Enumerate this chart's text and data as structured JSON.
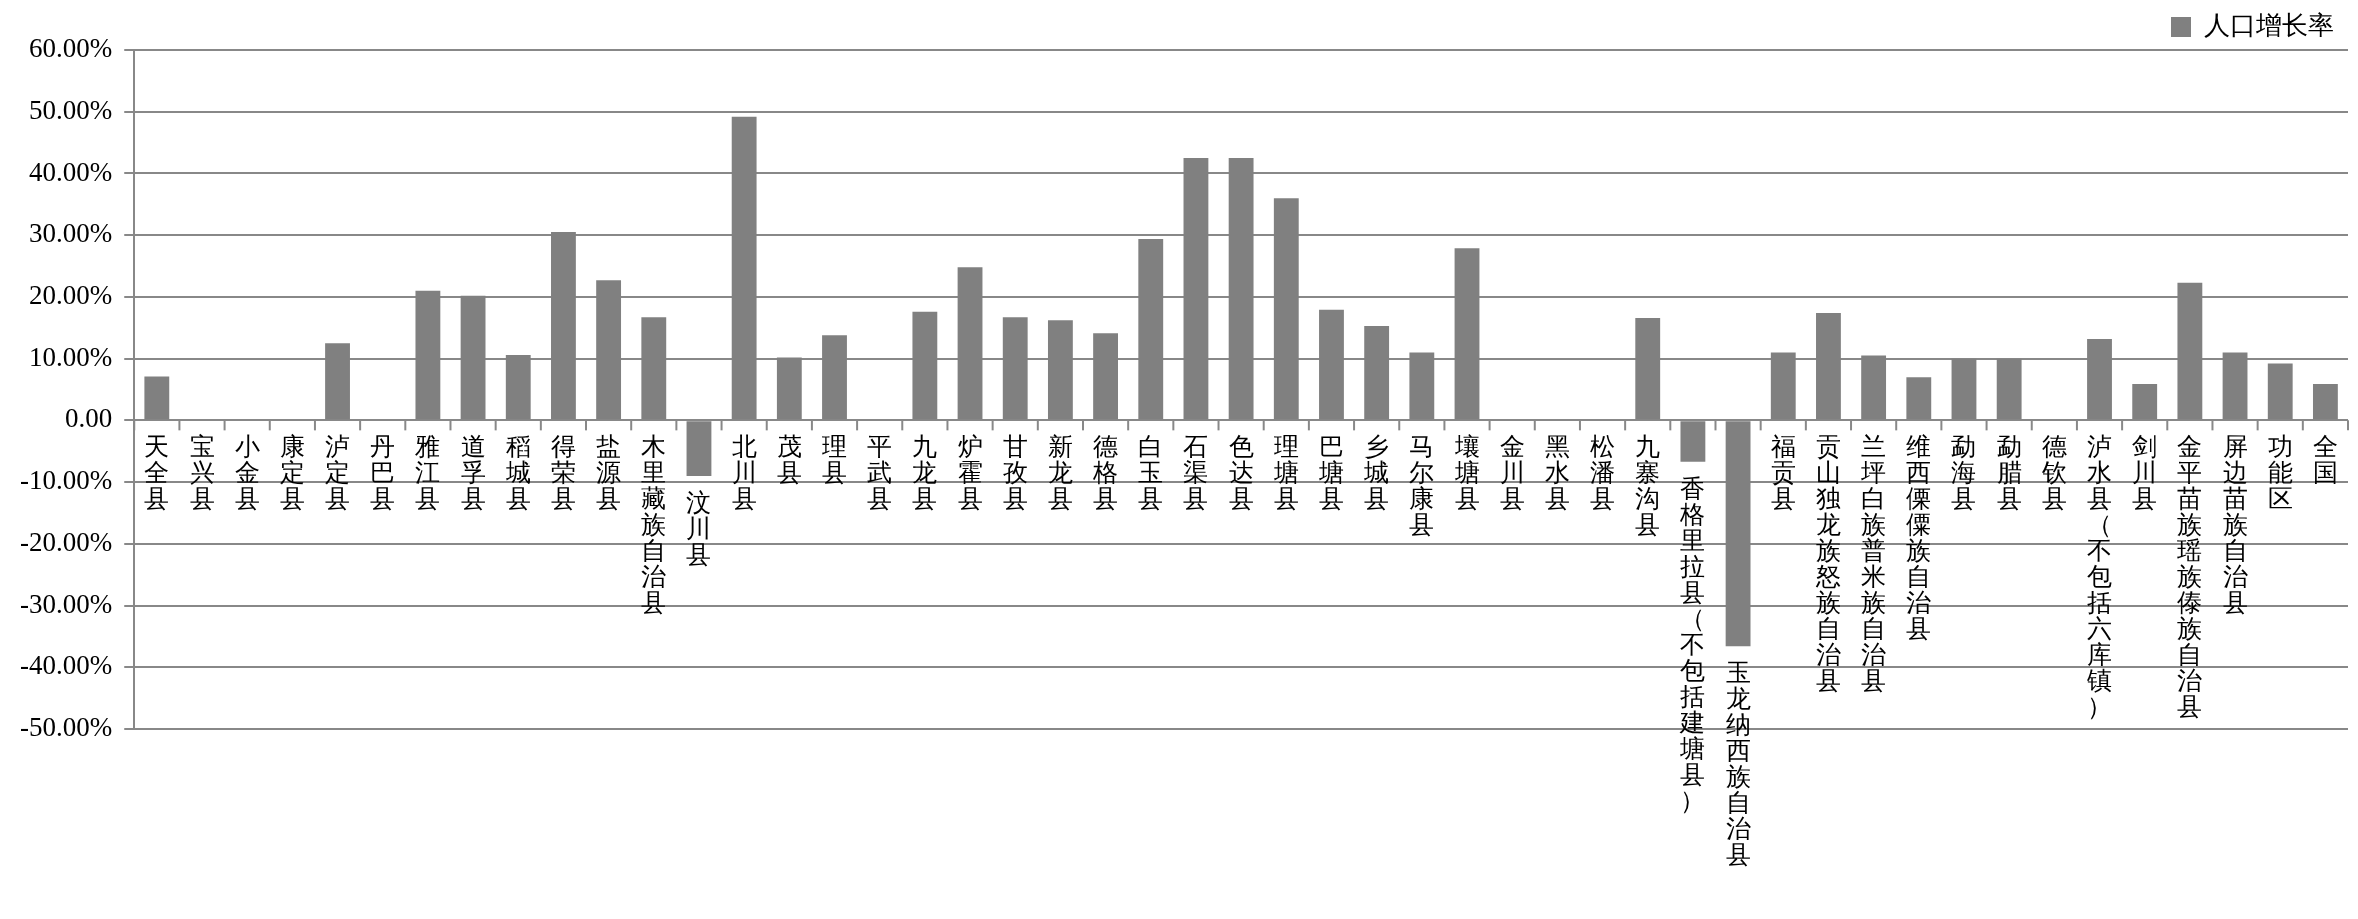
{
  "chart_data": {
    "type": "bar",
    "categories": [
      "天全县",
      "宝兴县",
      "小金县",
      "康定县",
      "泸定县",
      "丹巴县",
      "雅江县",
      "道孚县",
      "稻城县",
      "得荣县",
      "盐源县",
      "木里藏族自治县",
      "汶川县",
      "北川县",
      "茂县",
      "理县",
      "平武县",
      "九龙县",
      "炉霍县",
      "甘孜县",
      "新龙县",
      "德格县",
      "白玉县",
      "石渠县",
      "色达县",
      "理塘县",
      "巴塘县",
      "乡城县",
      "马尔康县",
      "壤塘县",
      "金川县",
      "黑水县",
      "松潘县",
      "九寨沟县",
      "香格里拉县（不包括建塘县）",
      "玉龙纳西族自治县",
      "福贡县",
      "贡山独龙族怒族自治县",
      "兰坪白族普米族自治县",
      "维西傈僳族自治县",
      "勐海县",
      "勐腊县",
      "德钦县",
      "泸水县（不包括六库镇）",
      "剑川县",
      "金平苗族瑶族傣族自治县",
      "屏边苗族自治县",
      "功能区",
      "全国"
    ],
    "series": [
      {
        "name": "人口增长率",
        "color": "#808080",
        "values": [
          7.1,
          0,
          0,
          0,
          12.5,
          0,
          21.0,
          20.2,
          10.6,
          30.5,
          22.7,
          16.7,
          -9.0,
          49.2,
          10.2,
          13.8,
          0,
          17.6,
          24.8,
          16.7,
          16.2,
          14.1,
          29.4,
          42.5,
          42.5,
          36.0,
          17.9,
          15.3,
          11.0,
          27.9,
          0,
          0,
          0,
          16.6,
          -6.7,
          -36.6,
          11.0,
          17.4,
          10.5,
          7.0,
          10.0,
          10.0,
          0,
          13.2,
          5.9,
          22.3,
          11.0,
          9.2,
          5.9
        ]
      }
    ],
    "ylim": [
      -50,
      60
    ],
    "yticks": [
      {
        "value": -50,
        "label": "-50.00%"
      },
      {
        "value": -40,
        "label": "-40.00%"
      },
      {
        "value": -30,
        "label": "-30.00%"
      },
      {
        "value": -20,
        "label": "-20.00%"
      },
      {
        "value": -10,
        "label": "-10.00%"
      },
      {
        "value": 0,
        "label": "0.00"
      },
      {
        "value": 10,
        "label": "10.00%"
      },
      {
        "value": 20,
        "label": "20.00%"
      },
      {
        "value": 30,
        "label": "30.00%"
      },
      {
        "value": 40,
        "label": "40.00%"
      },
      {
        "value": 50,
        "label": "50.00%"
      },
      {
        "value": 60,
        "label": "60.00%"
      }
    ],
    "grid": "y",
    "legend": "top right"
  }
}
